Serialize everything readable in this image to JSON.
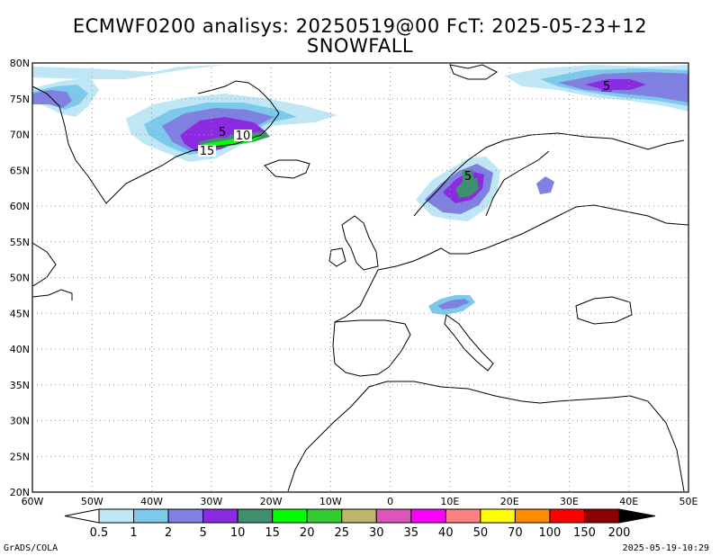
{
  "title": {
    "line1": "ECMWF0200 analisys: 20250519@00 FcT: 2025-05-23+12",
    "line2": "SNOWFALL"
  },
  "axes": {
    "lat_labels": [
      "80N",
      "75N",
      "70N",
      "65N",
      "60N",
      "55N",
      "50N",
      "45N",
      "40N",
      "35N",
      "30N",
      "25N",
      "20N"
    ],
    "lon_labels": [
      "60W",
      "50W",
      "40W",
      "30W",
      "20W",
      "10W",
      "0",
      "10E",
      "20E",
      "30E",
      "40E",
      "50E"
    ]
  },
  "map_labels": {
    "svalbard_contour": "5",
    "greenland_5": "5",
    "greenland_10": "10",
    "greenland_15": "15",
    "norway_5": "5"
  },
  "colorbar": {
    "ticks": [
      "0.5",
      "1",
      "2",
      "5",
      "10",
      "15",
      "20",
      "25",
      "30",
      "35",
      "40",
      "50",
      "70",
      "100",
      "150",
      "200"
    ],
    "colors": [
      "#bfe6f5",
      "#7dc9ec",
      "#8080e0",
      "#8a2be2",
      "#3f8f6f",
      "#00ff00",
      "#33cc33",
      "#bdb76b",
      "#dd55bb",
      "#ff00ff",
      "#ff8080",
      "#ffff00",
      "#ff8c00",
      "#ff0000",
      "#8b0000"
    ],
    "end_low_color": "#ffffff",
    "end_high_color": "#000000"
  },
  "footer": {
    "left": "GrADS/COLA",
    "right": "2025-05-19-10:29"
  }
}
